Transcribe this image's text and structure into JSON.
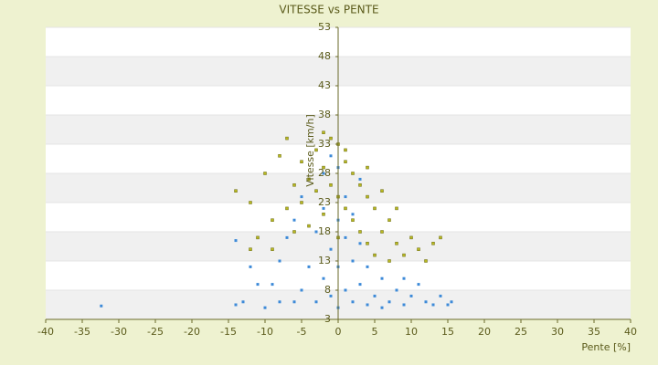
{
  "chart_data": {
    "type": "scatter",
    "title": "VITESSE vs PENTE",
    "x_label": "Pente [%]",
    "y_label": "Vitesse [km/h]",
    "xlim": [
      -40,
      40
    ],
    "xticks": [
      -40,
      -35,
      -30,
      -25,
      -20,
      -15,
      -10,
      -5,
      0,
      5,
      10,
      15,
      20,
      25,
      30,
      35,
      40
    ],
    "ylim": [
      3,
      53
    ],
    "yticks": [
      3,
      8,
      13,
      18,
      23,
      28,
      33,
      38,
      43,
      48,
      53
    ],
    "grid": true,
    "series": [
      {
        "color": "#3d8ad8",
        "x": [
          -32.4,
          -14,
          -13,
          -14,
          -12,
          -10,
          -9,
          -8,
          -7,
          -6,
          -5,
          -5,
          -4,
          -4,
          -3,
          -3,
          -3,
          -2,
          -2,
          -2,
          -1,
          -1,
          -1,
          0,
          0,
          0,
          0,
          1,
          1,
          1,
          2,
          2,
          2,
          3,
          3,
          4,
          4,
          5,
          5,
          6,
          7,
          8,
          9,
          10,
          11,
          12,
          13,
          14,
          15,
          15.5,
          -6,
          6,
          -8,
          9,
          -11,
          3,
          -1
        ],
        "values": [
          5.3,
          5.5,
          6,
          16.5,
          12,
          5,
          9,
          13,
          17,
          20,
          8,
          24,
          12,
          27,
          6,
          18,
          25,
          10,
          22,
          28,
          7,
          15,
          26,
          5,
          12,
          20,
          29,
          8,
          17,
          24,
          6,
          13,
          21,
          9,
          16,
          5.5,
          12,
          7,
          14,
          10,
          6,
          8,
          5.5,
          7,
          9,
          6,
          5.5,
          7,
          5.5,
          6,
          6,
          5,
          6,
          10,
          9,
          27,
          31
        ]
      },
      {
        "color": "#b8b820",
        "x": [
          -14,
          -12,
          -11,
          -10,
          -9,
          -8,
          -7,
          -7,
          -6,
          -6,
          -5,
          -5,
          -4,
          -4,
          -3,
          -3,
          -2,
          -2,
          -1,
          -1,
          0,
          0,
          0,
          1,
          1,
          2,
          2,
          3,
          3,
          4,
          4,
          5,
          5,
          6,
          6,
          7,
          7,
          8,
          9,
          10,
          11,
          12,
          13,
          14,
          -9,
          -12,
          -2,
          1,
          4,
          8
        ],
        "values": [
          25,
          23,
          17,
          28,
          20,
          31,
          34,
          22,
          26,
          18,
          30,
          23,
          27,
          19,
          32,
          25,
          29,
          21,
          34,
          26,
          33,
          24,
          17,
          30,
          22,
          28,
          20,
          26,
          18,
          24,
          16,
          22,
          14,
          25,
          18,
          20,
          13,
          16,
          14,
          17,
          15,
          13,
          16,
          17,
          15,
          15,
          35,
          32,
          29,
          22
        ]
      }
    ]
  }
}
